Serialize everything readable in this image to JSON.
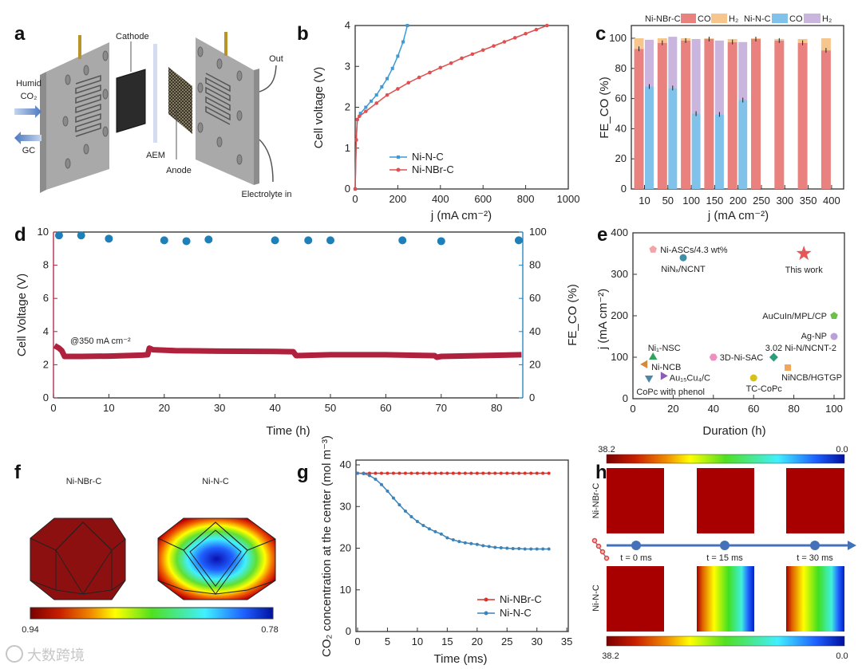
{
  "panel_labels": [
    "a",
    "b",
    "c",
    "d",
    "e",
    "f",
    "g",
    "h"
  ],
  "diagram_a": {
    "cathode": "Cathode",
    "humid": "Humid",
    "co2": "CO₂",
    "gc": "GC",
    "aem": "AEM",
    "anode": "Anode",
    "out": "Out",
    "electrolyte_in": "Electrolyte in"
  },
  "chart_data": [
    {
      "type": "line",
      "panel": "b",
      "xlabel": "j (mA cm⁻²)",
      "ylabel": "Cell voltage (V)",
      "xlim": [
        0,
        1000
      ],
      "ylim": [
        0,
        4
      ],
      "xticks": [
        "0",
        "200",
        "400",
        "600",
        "800",
        "1000"
      ],
      "yticks": [
        "0",
        "1",
        "2",
        "3",
        "4"
      ],
      "legend_position": "bottom-right",
      "series": [
        {
          "name": "Ni-N-C",
          "color": "#3d9ad6",
          "x": [
            0,
            5,
            10,
            25,
            50,
            75,
            100,
            125,
            150,
            175,
            200,
            225,
            245
          ],
          "y": [
            0,
            1.2,
            1.7,
            1.85,
            2.0,
            2.15,
            2.3,
            2.5,
            2.7,
            2.95,
            3.25,
            3.6,
            4.0
          ]
        },
        {
          "name": "Ni-NBr-C",
          "color": "#e0504f",
          "x": [
            0,
            5,
            10,
            20,
            50,
            100,
            150,
            200,
            250,
            300,
            350,
            400,
            450,
            500,
            550,
            600,
            650,
            700,
            750,
            800,
            850,
            900
          ],
          "y": [
            0,
            1.2,
            1.7,
            1.78,
            1.9,
            2.1,
            2.3,
            2.45,
            2.6,
            2.73,
            2.85,
            2.97,
            3.08,
            3.2,
            3.3,
            3.4,
            3.5,
            3.6,
            3.7,
            3.8,
            3.9,
            4.0
          ]
        }
      ]
    },
    {
      "type": "bar",
      "panel": "c",
      "xlabel": "j (mA cm⁻²)",
      "ylabel": "FE_CO (%)",
      "ylim": [
        0,
        108
      ],
      "yticks": [
        "0",
        "20",
        "40",
        "60",
        "80",
        "100"
      ],
      "categories": [
        "10",
        "50",
        "100",
        "150",
        "200",
        "250",
        "300",
        "350",
        "400"
      ],
      "legend": {
        "group1": "Ni-NBr-C",
        "group2": "Ni-N-C",
        "co": "CO",
        "h2": "H₂"
      },
      "series": [
        {
          "name": "Ni-NBr-C CO",
          "color": "#e9827f",
          "values": [
            93,
            97,
            98.5,
            99.5,
            97.5,
            99.5,
            98.5,
            97,
            92
          ]
        },
        {
          "name": "Ni-NBr-C H2",
          "color": "#f6c68c",
          "values": [
            7,
            3,
            1.5,
            0.5,
            2,
            0.5,
            1,
            2.5,
            8
          ]
        },
        {
          "name": "Ni-N-C CO",
          "color": "#80c2ea",
          "values": [
            68,
            67,
            50,
            49.5,
            59,
            null,
            null,
            null,
            null
          ]
        },
        {
          "name": "Ni-N-C H2",
          "color": "#c9b5dd",
          "values": [
            31,
            34,
            49.5,
            49,
            38.5,
            null,
            null,
            null,
            null
          ]
        }
      ]
    },
    {
      "type": "scatter",
      "panel": "d",
      "xlabel": "Time (h)",
      "ylabel_left": "Cell Voltage (V)",
      "ylabel_right": "FE_CO (%)",
      "annotation": "@350 mA cm⁻²",
      "xlim": [
        0,
        84.6
      ],
      "ylim_left": [
        0,
        10
      ],
      "ylim_right": [
        0,
        100
      ],
      "xticks": [
        "0",
        "10",
        "20",
        "30",
        "40",
        "50",
        "60",
        "70",
        "80"
      ],
      "yticks_left": [
        "0",
        "2",
        "4",
        "6",
        "8",
        "10"
      ],
      "yticks_right": [
        "0",
        "20",
        "40",
        "60",
        "80",
        "100"
      ],
      "voltage": {
        "color": "#b0213e",
        "t": [
          0.2,
          1,
          1.5,
          2,
          5,
          10,
          16,
          17,
          17.3,
          18,
          22,
          30,
          40,
          43.3,
          43.8,
          50,
          60,
          68.8,
          69.2,
          70,
          84.5
        ],
        "v": [
          3.15,
          3.0,
          2.85,
          2.5,
          2.5,
          2.52,
          2.58,
          2.6,
          3.0,
          2.9,
          2.85,
          2.82,
          2.8,
          2.78,
          2.55,
          2.6,
          2.6,
          2.55,
          2.45,
          2.5,
          2.6
        ]
      },
      "fe": {
        "color": "#1f7fb8",
        "t": [
          1,
          5,
          10,
          20,
          24,
          28,
          40,
          46,
          50,
          63,
          70,
          84
        ],
        "v": [
          98,
          98,
          96,
          95,
          94.5,
          95.5,
          95,
          95,
          95,
          95,
          94.5,
          95
        ]
      }
    },
    {
      "type": "scatter",
      "panel": "e",
      "xlabel": "Duration (h)",
      "ylabel": "j (mA cm⁻²)",
      "xlim": [
        0,
        104
      ],
      "ylim": [
        0,
        400
      ],
      "xticks": [
        "0",
        "20",
        "40",
        "60",
        "80",
        "100"
      ],
      "yticks": [
        "0",
        "100",
        "200",
        "300",
        "400"
      ],
      "points": [
        {
          "label": "Ni-ASCs/4.3 wt%",
          "x": 10,
          "y": 360,
          "color": "#f4a3a8",
          "marker": "pentagon"
        },
        {
          "label": "NiNₓ/NCNT",
          "x": 25,
          "y": 340,
          "color": "#3e8fa8",
          "marker": "circle"
        },
        {
          "label": "This work",
          "x": 85,
          "y": 350,
          "color": "#e4585a",
          "marker": "star"
        },
        {
          "label": "AuCuIn/MPL/CP",
          "x": 100,
          "y": 200,
          "color": "#6cc04a",
          "marker": "pentagon"
        },
        {
          "label": "Ag-NP",
          "x": 100,
          "y": 150,
          "color": "#b9a0d8",
          "marker": "circle"
        },
        {
          "label": "3.02 Ni-N/NCNT-2",
          "x": 70,
          "y": 100,
          "color": "#2d9c7c",
          "marker": "diamond"
        },
        {
          "label": "Ni₁-NSC",
          "x": 10,
          "y": 100,
          "color": "#2fa55c",
          "marker": "triangle-up"
        },
        {
          "label": "Ni-NCB",
          "x": 6,
          "y": 83,
          "color": "#d5893a",
          "marker": "triangle-left"
        },
        {
          "label": "Au₁₅Cu₄/C",
          "x": 15,
          "y": 55,
          "color": "#8b5bb5",
          "marker": "triangle-right"
        },
        {
          "label": "CoPc with phenol",
          "x": 8,
          "y": 50,
          "color": "#4a87a8",
          "marker": "triangle-down"
        },
        {
          "label": "3D-Ni-SAC",
          "x": 40,
          "y": 100,
          "color": "#f08fbf",
          "marker": "hexagon"
        },
        {
          "label": "TC-CoPc",
          "x": 60,
          "y": 50,
          "color": "#d4c21b",
          "marker": "circle"
        },
        {
          "label": "NiNCB/HGTGP",
          "x": 77,
          "y": 75,
          "color": "#f2a65a",
          "marker": "square"
        }
      ]
    },
    {
      "type": "line",
      "panel": "g",
      "xlabel": "Time (ms)",
      "ylabel": "CO₂ concentration at the center (mol m⁻³)",
      "xlim": [
        0,
        35
      ],
      "ylim": [
        0,
        40
      ],
      "xticks": [
        "0",
        "5",
        "10",
        "15",
        "20",
        "25",
        "30",
        "35"
      ],
      "yticks": [
        "0",
        "10",
        "20",
        "30",
        "40"
      ],
      "legend_position": "bottom-right",
      "x": [
        0,
        1,
        2,
        3,
        4,
        5,
        6,
        7,
        8,
        9,
        10,
        11,
        12,
        13,
        14,
        15,
        16,
        17,
        18,
        19,
        20,
        21,
        22,
        23,
        24,
        25,
        26,
        27,
        28,
        29,
        30,
        31,
        32
      ],
      "series": [
        {
          "name": "Ni-NBr-C",
          "color": "#d9342b",
          "values": [
            38,
            38,
            38,
            38,
            38,
            38,
            38,
            38,
            38,
            38,
            38,
            38,
            38,
            38,
            38,
            38,
            38,
            38,
            38,
            38,
            38,
            38,
            38,
            38,
            38,
            38,
            38,
            38,
            38,
            38,
            38,
            38,
            38
          ]
        },
        {
          "name": "Ni-N-C",
          "color": "#3b83b8",
          "values": [
            38,
            37.9,
            37.45,
            36.56,
            35.27,
            33.7,
            32.04,
            30.4,
            28.9,
            27.57,
            26.4,
            25.46,
            24.65,
            23.97,
            23.4,
            22.5,
            22.0,
            21.6,
            21.3,
            21.1,
            20.9,
            20.6,
            20.4,
            20.2,
            20.1,
            20.0,
            19.9,
            19.9,
            19.8,
            19.8,
            19.8,
            19.8,
            19.8
          ]
        }
      ]
    }
  ],
  "simulation_f": {
    "left_title": "Ni-NBr-C",
    "right_title": "Ni-N-C",
    "colorbar_min": "0.94",
    "colorbar_max": "0.78"
  },
  "simulation_h": {
    "colorbar_left": "38.2",
    "colorbar_right": "0.0",
    "row_top": "Ni-NBr-C",
    "row_bottom": "Ni-N-C",
    "times": [
      "t = 0 ms",
      "t = 15 ms",
      "t = 30 ms"
    ]
  },
  "watermark": "大数跨境"
}
